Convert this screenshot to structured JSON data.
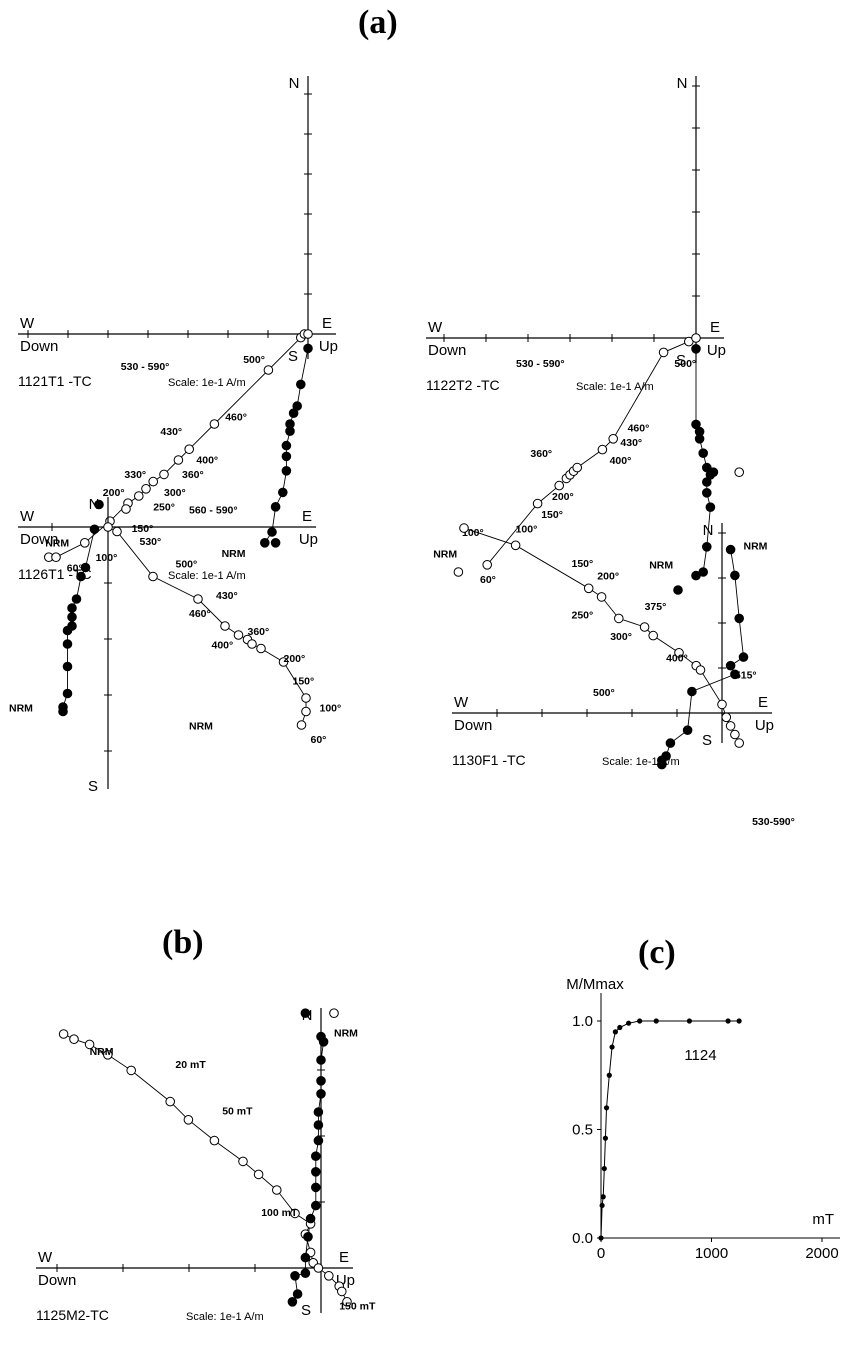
{
  "headings": {
    "a": "(a)",
    "b": "(b)",
    "c": "(c)"
  },
  "zijderveld": [
    {
      "id": "1121T1 -TC",
      "scale": "Scale: 1e-1 A/m",
      "axes": {
        "n": "N",
        "s": "S",
        "w": "W",
        "e": "E",
        "down": "Down",
        "up": "Up"
      },
      "vertical": [
        [
          -9,
          -58
        ],
        [
          -12,
          -58
        ],
        [
          -10,
          -55
        ],
        [
          -9,
          -48
        ],
        [
          -7,
          -44
        ],
        [
          -6,
          -38
        ],
        [
          -6,
          -34
        ],
        [
          -6,
          -31
        ],
        [
          -5,
          -27
        ],
        [
          -5,
          -25
        ],
        [
          -4,
          -22
        ],
        [
          -3,
          -20
        ],
        [
          -2,
          -14
        ],
        [
          0,
          -4
        ]
      ],
      "horizontal": [
        [
          -72,
          -62
        ],
        [
          -70,
          -62
        ],
        [
          -62,
          -58
        ],
        [
          -55,
          -52
        ],
        [
          -50,
          -47
        ],
        [
          -47,
          -45
        ],
        [
          -45,
          -43
        ],
        [
          -43,
          -41
        ],
        [
          -40,
          -39
        ],
        [
          -36,
          -35
        ],
        [
          -33,
          -32
        ],
        [
          -26,
          -25
        ],
        [
          -11,
          -10
        ],
        [
          -2,
          -1
        ],
        [
          -1,
          0
        ],
        [
          0,
          0
        ]
      ],
      "steps": [
        {
          "t": "NRM",
          "x": -73,
          "y": -59
        },
        {
          "t": "60°",
          "x": -67,
          "y": -66
        },
        {
          "t": "100°",
          "x": -59,
          "y": -63
        },
        {
          "t": "150°",
          "x": -49,
          "y": -55
        },
        {
          "t": "250°",
          "x": -43,
          "y": -49
        },
        {
          "t": "200°",
          "x": -57,
          "y": -45
        },
        {
          "t": "300°",
          "x": -40,
          "y": -45
        },
        {
          "t": "360°",
          "x": -35,
          "y": -40
        },
        {
          "t": "330°",
          "x": -51,
          "y": -40
        },
        {
          "t": "400°",
          "x": -31,
          "y": -36
        },
        {
          "t": "430°",
          "x": -41,
          "y": -28
        },
        {
          "t": "460°",
          "x": -23,
          "y": -24
        },
        {
          "t": "500°",
          "x": -18,
          "y": -8
        },
        {
          "t": "530 - 590°",
          "x": -52,
          "y": -10
        },
        {
          "t": "NRM",
          "x": -24,
          "y": -62
        }
      ]
    },
    {
      "id": "1122T2 -TC",
      "scale": "Scale: 1e-1 A/m",
      "axes": {
        "n": "N",
        "s": "S",
        "w": "W",
        "e": "E",
        "down": "Down",
        "up": "Up"
      },
      "vertical": [
        [
          -5,
          -70
        ],
        [
          0,
          -66
        ],
        [
          2,
          -65
        ],
        [
          3,
          -58
        ],
        [
          4,
          -47
        ],
        [
          3,
          -43
        ],
        [
          3,
          -40
        ],
        [
          4,
          -38
        ],
        [
          3,
          -36
        ],
        [
          2,
          -32
        ],
        [
          1,
          -28
        ],
        [
          1,
          -26
        ],
        [
          0,
          -24
        ],
        [
          0,
          -3
        ]
      ],
      "horizontal": [
        [
          -66,
          -65
        ],
        [
          -58,
          -63
        ],
        [
          -44,
          -46
        ],
        [
          -38,
          -41
        ],
        [
          -36,
          -39
        ],
        [
          -35,
          -38
        ],
        [
          -34,
          -37
        ],
        [
          -33,
          -36
        ],
        [
          -26,
          -31
        ],
        [
          -23,
          -28
        ],
        [
          -9,
          -4
        ],
        [
          -2,
          -1
        ],
        [
          0,
          0
        ]
      ],
      "steps": [
        {
          "t": "NRM",
          "x": -73,
          "y": -61
        },
        {
          "t": "60°",
          "x": -60,
          "y": -68
        },
        {
          "t": "100°",
          "x": -65,
          "y": -55
        },
        {
          "t": "150°",
          "x": -43,
          "y": -50
        },
        {
          "t": "200°",
          "x": -40,
          "y": -45
        },
        {
          "t": "360°",
          "x": -46,
          "y": -33
        },
        {
          "t": "400°",
          "x": -24,
          "y": -35
        },
        {
          "t": "430°",
          "x": -21,
          "y": -30
        },
        {
          "t": "460°",
          "x": -19,
          "y": -26
        },
        {
          "t": "500°",
          "x": -6,
          "y": -8
        },
        {
          "t": "530 - 590°",
          "x": -50,
          "y": -8
        },
        {
          "t": "NRM",
          "x": -13,
          "y": -64
        }
      ]
    },
    {
      "id": "1126T1 -TC",
      "scale": "Scale: 1e-1 A/m",
      "axes": {
        "n": "N",
        "s": "S",
        "w": "W",
        "e": "E",
        "down": "Down",
        "up": "Up"
      },
      "vertical": [
        [
          -2,
          5
        ],
        [
          -3,
          -0.5
        ],
        [
          -5,
          -9
        ],
        [
          -6,
          -11
        ],
        [
          -7,
          -16
        ],
        [
          -8,
          -18
        ],
        [
          -8,
          -20
        ],
        [
          -8,
          -22
        ],
        [
          -9,
          -23
        ],
        [
          -9,
          -26
        ],
        [
          -9,
          -31
        ],
        [
          -9,
          -37
        ],
        [
          -10,
          -40
        ],
        [
          -10,
          -41
        ]
      ],
      "horizontal": [
        [
          4,
          4
        ],
        [
          0,
          0
        ],
        [
          2,
          -1
        ],
        [
          10,
          -11
        ],
        [
          20,
          -16
        ],
        [
          26,
          -22
        ],
        [
          29,
          -24
        ],
        [
          31,
          -25
        ],
        [
          32,
          -26
        ],
        [
          34,
          -27
        ],
        [
          39,
          -30
        ],
        [
          44,
          -38
        ],
        [
          44,
          -41
        ],
        [
          43,
          -44
        ]
      ],
      "steps": [
        {
          "t": "560 - 590°",
          "x": 18,
          "y": 3
        },
        {
          "t": "530°",
          "x": 7,
          "y": -4
        },
        {
          "t": "500°",
          "x": 15,
          "y": -9
        },
        {
          "t": "460°",
          "x": 18,
          "y": -20
        },
        {
          "t": "430°",
          "x": 24,
          "y": -16
        },
        {
          "t": "400°",
          "x": 23,
          "y": -27
        },
        {
          "t": "360°",
          "x": 31,
          "y": -24
        },
        {
          "t": "200°",
          "x": 39,
          "y": -30
        },
        {
          "t": "150°",
          "x": 41,
          "y": -35
        },
        {
          "t": "100°",
          "x": 47,
          "y": -41
        },
        {
          "t": "NRM",
          "x": 18,
          "y": -45
        },
        {
          "t": "60°",
          "x": 45,
          "y": -48
        },
        {
          "t": "NRM",
          "x": -22,
          "y": -41
        }
      ]
    },
    {
      "id": "1130F1 -TC",
      "scale": "Scale: 1e-1 A/m",
      "axes": {
        "n": "N",
        "s": "S",
        "w": "W",
        "e": "E",
        "down": "Down",
        "up": "Up"
      },
      "vertical": [
        [
          -2,
          56
        ],
        [
          2,
          38
        ],
        [
          3,
          32
        ],
        [
          4,
          22
        ],
        [
          5,
          13
        ],
        [
          2,
          11
        ],
        [
          3,
          9
        ],
        [
          -7,
          5
        ],
        [
          -8,
          -4
        ],
        [
          -12,
          -7
        ],
        [
          -13,
          -10
        ],
        [
          -14,
          -11
        ],
        [
          -14,
          -12
        ]
      ],
      "horizontal": [
        [
          4,
          56
        ],
        [
          -60,
          43
        ],
        [
          -48,
          39
        ],
        [
          -31,
          29
        ],
        [
          -28,
          27
        ],
        [
          -24,
          22
        ],
        [
          -18,
          20
        ],
        [
          -16,
          18
        ],
        [
          -10,
          14
        ],
        [
          -6,
          11
        ],
        [
          -5,
          10
        ],
        [
          0,
          2
        ],
        [
          1,
          -1
        ],
        [
          2,
          -3
        ],
        [
          3,
          -5
        ],
        [
          4,
          -7
        ]
      ],
      "steps": [
        {
          "t": "NRM",
          "x": 5,
          "y": 38
        },
        {
          "t": "100°",
          "x": -48,
          "y": 42
        },
        {
          "t": "150°",
          "x": -35,
          "y": 34
        },
        {
          "t": "200°",
          "x": -29,
          "y": 31
        },
        {
          "t": "250°",
          "x": -35,
          "y": 22
        },
        {
          "t": "375°",
          "x": -18,
          "y": 24
        },
        {
          "t": "300°",
          "x": -26,
          "y": 17
        },
        {
          "t": "400°",
          "x": -13,
          "y": 12
        },
        {
          "t": "500°",
          "x": -30,
          "y": 4
        },
        {
          "t": "515°",
          "x": 3,
          "y": 8
        },
        {
          "t": "530-590°",
          "x": 7,
          "y": -26
        }
      ]
    },
    {
      "id": "1125M2-TC",
      "scale": "Scale: 1e-1 A/m",
      "axes": {
        "n": "N",
        "s": "S",
        "w": "W",
        "e": "E",
        "down": "Down",
        "up": "Up"
      },
      "vertical": [
        [
          -6,
          98
        ],
        [
          0,
          89
        ],
        [
          1,
          87
        ],
        [
          0,
          80
        ],
        [
          0,
          72
        ],
        [
          0,
          67
        ],
        [
          -1,
          60
        ],
        [
          -1,
          55
        ],
        [
          -1,
          49
        ],
        [
          -2,
          43
        ],
        [
          -2,
          37
        ],
        [
          -2,
          31
        ],
        [
          -2,
          24
        ],
        [
          -4,
          19
        ],
        [
          -5,
          12
        ],
        [
          -6,
          4
        ],
        [
          -6,
          -2
        ],
        [
          -10,
          -3
        ],
        [
          -9,
          -10
        ],
        [
          -11,
          -13
        ]
      ],
      "horizontal": [
        [
          5,
          98
        ],
        [
          -99,
          90
        ],
        [
          -95,
          88
        ],
        [
          -89,
          86
        ],
        [
          -82,
          82
        ],
        [
          -73,
          76
        ],
        [
          -58,
          64
        ],
        [
          -51,
          57
        ],
        [
          -41,
          49
        ],
        [
          -30,
          41
        ],
        [
          -24,
          36
        ],
        [
          -17,
          30
        ],
        [
          -10,
          21
        ],
        [
          -4,
          17
        ],
        [
          -6,
          13
        ],
        [
          -4,
          6
        ],
        [
          -3,
          2
        ],
        [
          -1,
          0
        ],
        [
          3,
          -3
        ],
        [
          7,
          -7
        ],
        [
          8,
          -9
        ],
        [
          10,
          -13
        ]
      ],
      "steps": [
        {
          "t": "NRM",
          "x": -89,
          "y": 82
        },
        {
          "t": "20 mT",
          "x": -56,
          "y": 77
        },
        {
          "t": "50 mT",
          "x": -38,
          "y": 59
        },
        {
          "t": "100 mT",
          "x": -23,
          "y": 20
        },
        {
          "t": "NRM",
          "x": 5,
          "y": 89
        },
        {
          "t": "150 mT",
          "x": 7,
          "y": -16
        }
      ]
    }
  ],
  "chart_data": [
    {
      "type": "scatter",
      "panel": "(a)",
      "title": "1121T1 -TC",
      "xlabel": "W / E (Down / Up)",
      "ylabel": "N / S",
      "note": "Zijderveld diagram; filled = horizontal projection, open = vertical projection",
      "scale": "1e-1 A/m"
    },
    {
      "type": "scatter",
      "panel": "(a)",
      "title": "1122T2 -TC",
      "scale": "1e-1 A/m"
    },
    {
      "type": "scatter",
      "panel": "(a)",
      "title": "1126T1 -TC",
      "scale": "1e-1 A/m"
    },
    {
      "type": "scatter",
      "panel": "(a)",
      "title": "1130F1 -TC",
      "scale": "1e-1 A/m"
    },
    {
      "type": "scatter",
      "panel": "(b)",
      "title": "1125M2-TC",
      "scale": "1e-1 A/m"
    },
    {
      "type": "line",
      "panel": "(c)",
      "title": "1124",
      "xlabel": "mT",
      "ylabel": "M/Mmax",
      "xlim": [
        0,
        2000
      ],
      "ylim": [
        0,
        1.0
      ],
      "xticks": [
        "0",
        "1000",
        "2000"
      ],
      "yticks": [
        "0.0",
        "0.5",
        "1.0"
      ],
      "x": [
        0,
        10,
        20,
        30,
        40,
        50,
        75,
        100,
        130,
        170,
        250,
        350,
        500,
        800,
        1150,
        1250
      ],
      "y": [
        0.0,
        0.15,
        0.19,
        0.32,
        0.46,
        0.6,
        0.75,
        0.88,
        0.95,
        0.97,
        0.99,
        1.0,
        1.0,
        1.0,
        1.0,
        1.0
      ]
    }
  ]
}
